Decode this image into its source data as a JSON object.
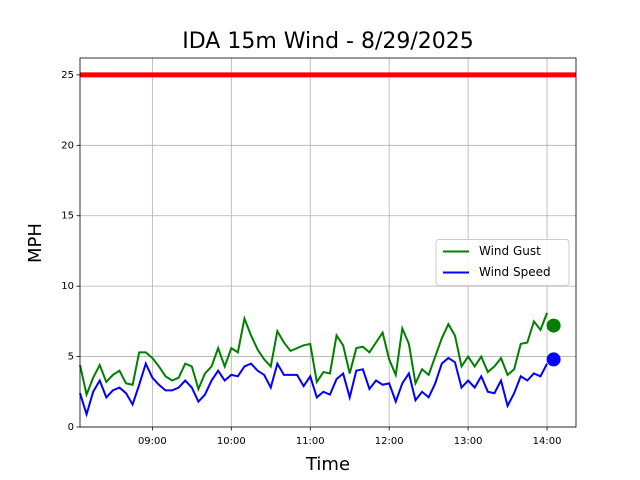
{
  "chart_data": {
    "type": "line",
    "title": "IDA 15m Wind - 8/29/2025",
    "x_label": "Time",
    "y_label": "MPH",
    "xlim": [
      "08:05",
      "14:22"
    ],
    "xticks": [
      "09:00",
      "10:00",
      "11:00",
      "12:00",
      "13:00",
      "14:00"
    ],
    "ylim": [
      0,
      26.2
    ],
    "yticks": [
      0,
      5,
      10,
      15,
      20,
      25
    ],
    "grid": true,
    "legend": "center right",
    "threshold": {
      "value": 25,
      "color": "#ff0000"
    },
    "x": [
      "08:05",
      "08:10",
      "08:15",
      "08:20",
      "08:25",
      "08:30",
      "08:35",
      "08:40",
      "08:45",
      "08:50",
      "08:55",
      "09:00",
      "09:05",
      "09:10",
      "09:15",
      "09:20",
      "09:25",
      "09:30",
      "09:35",
      "09:40",
      "09:45",
      "09:50",
      "09:55",
      "10:00",
      "10:05",
      "10:10",
      "10:15",
      "10:20",
      "10:25",
      "10:30",
      "10:35",
      "10:40",
      "10:45",
      "10:50",
      "10:55",
      "11:00",
      "11:05",
      "11:10",
      "11:15",
      "11:20",
      "11:25",
      "11:30",
      "11:35",
      "11:40",
      "11:45",
      "11:50",
      "11:55",
      "12:00",
      "12:05",
      "12:10",
      "12:15",
      "12:20",
      "12:25",
      "12:30",
      "12:35",
      "12:40",
      "12:45",
      "12:50",
      "12:55",
      "13:00",
      "13:05",
      "13:10",
      "13:15",
      "13:20",
      "13:25",
      "13:30",
      "13:35",
      "13:40",
      "13:45",
      "13:50",
      "13:55",
      "14:00"
    ],
    "series": [
      {
        "name": "Wind Gust",
        "color": "#008000",
        "values": [
          4.4,
          2.3,
          3.5,
          4.4,
          3.2,
          3.7,
          4.0,
          3.1,
          3.0,
          5.3,
          5.3,
          4.9,
          4.3,
          3.6,
          3.3,
          3.5,
          4.5,
          4.3,
          2.7,
          3.8,
          4.3,
          5.6,
          4.3,
          5.6,
          5.3,
          7.7,
          6.5,
          5.5,
          4.8,
          4.3,
          6.8,
          6.0,
          5.4,
          5.6,
          5.8,
          5.9,
          3.2,
          3.9,
          3.8,
          6.5,
          5.8,
          3.8,
          5.6,
          5.7,
          5.3,
          6.0,
          6.7,
          4.8,
          3.7,
          7.0,
          5.9,
          3.1,
          4.1,
          3.7,
          5.0,
          6.3,
          7.3,
          6.5,
          4.3,
          5.0,
          4.3,
          5.0,
          3.9,
          4.3,
          4.9,
          3.7,
          4.1,
          5.9,
          6.0,
          7.5,
          6.9,
          8.1
        ],
        "latest": {
          "x": "14:05",
          "value": 7.2
        }
      },
      {
        "name": "Wind Speed",
        "color": "#0000ff",
        "values": [
          2.4,
          0.9,
          2.5,
          3.3,
          2.1,
          2.6,
          2.8,
          2.4,
          1.6,
          3.0,
          4.5,
          3.5,
          3.0,
          2.6,
          2.6,
          2.8,
          3.3,
          2.8,
          1.8,
          2.3,
          3.3,
          4.0,
          3.3,
          3.7,
          3.6,
          4.3,
          4.5,
          4.0,
          3.7,
          2.8,
          4.5,
          3.7,
          3.7,
          3.7,
          2.9,
          3.6,
          2.1,
          2.5,
          2.3,
          3.4,
          3.8,
          2.1,
          4.0,
          4.1,
          2.7,
          3.3,
          3.0,
          3.1,
          1.8,
          3.1,
          3.8,
          1.9,
          2.5,
          2.1,
          3.1,
          4.5,
          4.9,
          4.6,
          2.8,
          3.3,
          2.8,
          3.6,
          2.5,
          2.4,
          3.3,
          1.5,
          2.4,
          3.6,
          3.3,
          3.8,
          3.6,
          4.5
        ],
        "latest": {
          "x": "14:05",
          "value": 4.8
        }
      }
    ]
  }
}
